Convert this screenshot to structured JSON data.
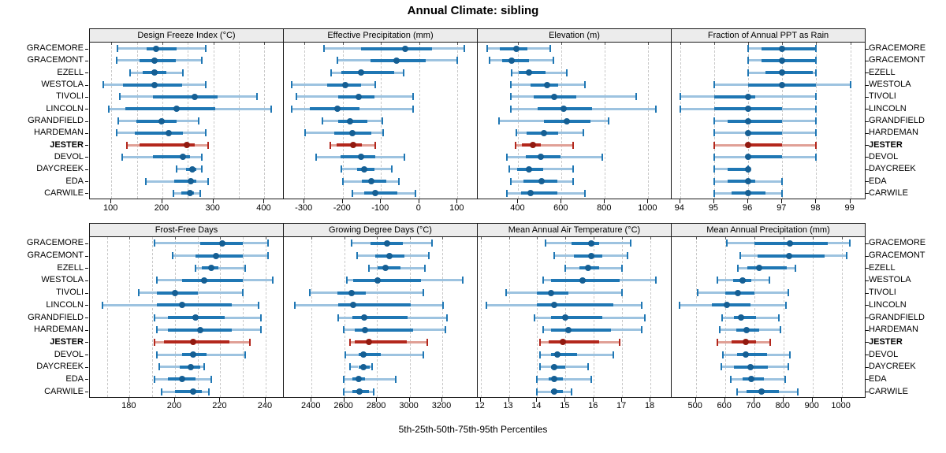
{
  "title": "Annual Climate: sibling",
  "caption": "5th-25th-50th-75th-95th Percentiles",
  "chart_data": {
    "type": "trellis-percentile-dotplot",
    "title": "Annual Climate: sibling",
    "caption": "5th-25th-50th-75th-95th Percentiles",
    "percentile_labels": [
      "5th",
      "25th",
      "50th",
      "75th",
      "95th"
    ],
    "legend_position": "none",
    "grid": "on",
    "stations": [
      "GRACEMORE",
      "GRACEMONT",
      "EZELL",
      "WESTOLA",
      "TIVOLI",
      "LINCOLN",
      "GRANDFIELD",
      "HARDEMAN",
      "JESTER",
      "DEVOL",
      "DAYCREEK",
      "EDA",
      "CARWILE"
    ],
    "highlight_station": "JESTER",
    "colors": {
      "blue_tail": "#9dc3e0",
      "blue_box": "#1f77b4",
      "blue_dot": "#155f94",
      "red_tail": "#e0a096",
      "red_box": "#b3271c",
      "red_dot": "#921a10",
      "grid": "#c9c9c9",
      "header_bg": "#ececec",
      "border": "#1a1a1a"
    },
    "panels": [
      {
        "title": "Design Freeze Index (°C)",
        "band": 0,
        "domain": [
          58,
          438
        ],
        "ticks": [
          100,
          200,
          300,
          400
        ],
        "minor_grid": [
          150,
          250,
          350
        ],
        "series": [
          [
            112,
            169,
            188,
            228,
            285
          ],
          [
            110,
            156,
            185,
            226,
            278
          ],
          [
            137,
            162,
            184,
            208,
            241
          ],
          [
            84,
            123,
            185,
            238,
            285
          ],
          [
            116,
            182,
            263,
            308,
            386
          ],
          [
            95,
            128,
            228,
            304,
            413
          ],
          [
            113,
            149,
            199,
            228,
            271
          ],
          [
            110,
            146,
            212,
            241,
            285
          ],
          [
            131,
            156,
            248,
            264,
            289
          ],
          [
            122,
            182,
            241,
            254,
            278
          ],
          [
            228,
            246,
            259,
            267,
            278
          ],
          [
            167,
            223,
            256,
            267,
            289
          ],
          [
            222,
            237,
            254,
            262,
            275
          ]
        ]
      },
      {
        "title": "Effective Precipitation (mm)",
        "band": 0,
        "domain": [
          -354,
          153
        ],
        "ticks": [
          -300,
          -200,
          -100,
          0,
          100
        ],
        "minor_grid": [],
        "series": [
          [
            -249,
            -153,
            -37,
            34,
            118
          ],
          [
            -214,
            -128,
            -59,
            16,
            99
          ],
          [
            -230,
            -204,
            -151,
            -65,
            -40
          ],
          [
            -334,
            -241,
            -194,
            -153,
            -114
          ],
          [
            -320,
            -211,
            -159,
            -116,
            -15
          ],
          [
            -334,
            -285,
            -214,
            -156,
            -17
          ],
          [
            -253,
            -211,
            -181,
            -135,
            -97
          ],
          [
            -299,
            -223,
            -174,
            -125,
            -94
          ],
          [
            -232,
            -216,
            -172,
            -149,
            -114
          ],
          [
            -269,
            -206,
            -153,
            -114,
            -38
          ],
          [
            -204,
            -163,
            -144,
            -118,
            -72
          ],
          [
            -199,
            -149,
            -125,
            -87,
            -54
          ],
          [
            -174,
            -144,
            -114,
            -58,
            -10
          ]
        ]
      },
      {
        "title": "Elevation (m)",
        "band": 0,
        "domain": [
          213,
          1108
        ],
        "ticks": [
          400,
          600,
          800,
          1000
        ],
        "minor_grid": [],
        "series": [
          [
            257,
            315,
            390,
            442,
            549
          ],
          [
            267,
            325,
            370,
            450,
            561
          ],
          [
            370,
            404,
            450,
            527,
            624
          ],
          [
            364,
            455,
            532,
            583,
            708
          ],
          [
            367,
            471,
            566,
            667,
            945
          ],
          [
            364,
            491,
            610,
            740,
            1034
          ],
          [
            313,
            519,
            624,
            734,
            816
          ],
          [
            392,
            440,
            519,
            583,
            701
          ],
          [
            386,
            418,
            466,
            504,
            652
          ],
          [
            349,
            436,
            504,
            596,
            788
          ],
          [
            358,
            394,
            450,
            515,
            655
          ],
          [
            364,
            424,
            509,
            582,
            655
          ],
          [
            349,
            412,
            455,
            582,
            707
          ]
        ]
      },
      {
        "title": "Fraction of Annual PPT as Rain",
        "band": 0,
        "domain": [
          93.75,
          99.45
        ],
        "ticks": [
          94,
          95,
          96,
          97,
          98,
          99
        ],
        "minor_grid": [],
        "series": [
          [
            96,
            96.4,
            97,
            98,
            98
          ],
          [
            96,
            96.4,
            97,
            98,
            98
          ],
          [
            96,
            96.5,
            97,
            97.9,
            98
          ],
          [
            95,
            96,
            97,
            98,
            99
          ],
          [
            94,
            95,
            96,
            96.2,
            98
          ],
          [
            94,
            95,
            96,
            97,
            98
          ],
          [
            95,
            95.4,
            96,
            97,
            98
          ],
          [
            95,
            96,
            96,
            97,
            98
          ],
          [
            95,
            96,
            96,
            97,
            98
          ],
          [
            95,
            96,
            96,
            97,
            98
          ],
          [
            95,
            95.4,
            96,
            96,
            96
          ],
          [
            95,
            95.4,
            96,
            96.2,
            97
          ],
          [
            95,
            95.5,
            96,
            96.5,
            97
          ]
        ]
      },
      {
        "title": "Frost-Free Days",
        "band": 1,
        "domain": [
          162.5,
          248
        ],
        "ticks": [
          180,
          200,
          220,
          240
        ],
        "minor_grid": [
          170,
          190,
          210,
          230
        ],
        "series": [
          [
            191,
            211,
            221,
            230,
            241
          ],
          [
            199,
            209,
            218,
            230,
            241
          ],
          [
            209,
            212,
            216,
            219,
            231
          ],
          [
            192,
            203,
            213,
            230,
            243
          ],
          [
            184,
            192,
            200,
            210,
            230
          ],
          [
            168,
            192,
            203,
            225,
            237
          ],
          [
            191,
            197,
            209,
            222,
            238
          ],
          [
            192,
            197,
            211,
            225,
            238
          ],
          [
            191,
            195,
            208,
            224,
            233
          ],
          [
            192,
            203,
            208,
            214,
            231
          ],
          [
            193,
            202,
            207,
            211,
            213
          ],
          [
            191,
            197,
            203,
            209,
            216
          ],
          [
            194,
            200,
            208,
            212,
            215
          ]
        ]
      },
      {
        "title": "Growing Degree Days (°C)",
        "band": 1,
        "domain": [
          2230,
          3417
        ],
        "ticks": [
          2400,
          2600,
          2800,
          3000,
          3200
        ],
        "minor_grid": [],
        "series": [
          [
            2646,
            2761,
            2862,
            2958,
            3139
          ],
          [
            2678,
            2790,
            2875,
            2966,
            3118
          ],
          [
            2750,
            2806,
            2854,
            2944,
            3094
          ],
          [
            2614,
            2654,
            2803,
            3070,
            3326
          ],
          [
            2390,
            2558,
            2646,
            2731,
            3083
          ],
          [
            2299,
            2563,
            2654,
            3006,
            3203
          ],
          [
            2563,
            2651,
            2723,
            2987,
            3230
          ],
          [
            2598,
            2662,
            2726,
            3022,
            3219
          ],
          [
            2635,
            2662,
            2750,
            2982,
            3107
          ],
          [
            2606,
            2686,
            2715,
            2822,
            3083
          ],
          [
            2635,
            2686,
            2718,
            2755,
            2771
          ],
          [
            2598,
            2651,
            2686,
            2726,
            2915
          ],
          [
            2595,
            2651,
            2694,
            2750,
            2782
          ]
        ]
      },
      {
        "title": "Mean Annual Air Temperature (°C)",
        "band": 1,
        "domain": [
          11.9,
          18.75
        ],
        "ticks": [
          12,
          13,
          14,
          15,
          16,
          17,
          18
        ],
        "minor_grid": [],
        "series": [
          [
            14.3,
            15.2,
            15.9,
            16.2,
            17.3
          ],
          [
            14.6,
            15.3,
            15.9,
            16.3,
            17.2
          ],
          [
            15.0,
            15.5,
            15.8,
            16.2,
            17.0
          ],
          [
            14.2,
            14.5,
            15.6,
            16.9,
            18.2
          ],
          [
            12.9,
            14.0,
            14.5,
            15.1,
            17.0
          ],
          [
            12.2,
            14.0,
            14.6,
            16.7,
            17.7
          ],
          [
            13.9,
            14.5,
            15.0,
            16.3,
            17.8
          ],
          [
            14.2,
            14.5,
            15.1,
            16.6,
            17.7
          ],
          [
            14.1,
            14.4,
            14.9,
            16.2,
            16.9
          ],
          [
            14.1,
            14.5,
            14.7,
            15.4,
            16.7
          ],
          [
            14.1,
            14.5,
            14.6,
            15.0,
            15.8
          ],
          [
            14.0,
            14.4,
            14.6,
            14.9,
            15.9
          ],
          [
            14.0,
            14.5,
            14.6,
            14.9,
            15.2
          ]
        ]
      },
      {
        "title": "Mean Annual Precipitation (mm)",
        "band": 1,
        "domain": [
          417,
          1082
        ],
        "ticks": [
          500,
          600,
          700,
          800,
          900,
          1000
        ],
        "minor_grid": [],
        "series": [
          [
            605,
            700,
            822,
            953,
            1027
          ],
          [
            653,
            712,
            820,
            941,
            1016
          ],
          [
            644,
            677,
            718,
            811,
            841
          ],
          [
            575,
            627,
            659,
            691,
            753
          ],
          [
            505,
            600,
            644,
            700,
            818
          ],
          [
            444,
            554,
            607,
            686,
            809
          ],
          [
            589,
            630,
            655,
            705,
            785
          ],
          [
            582,
            639,
            675,
            718,
            791
          ],
          [
            575,
            623,
            671,
            705,
            755
          ],
          [
            594,
            641,
            671,
            744,
            823
          ],
          [
            586,
            630,
            686,
            748,
            818
          ],
          [
            621,
            659,
            691,
            732,
            807
          ],
          [
            641,
            673,
            725,
            785,
            850
          ]
        ]
      }
    ]
  }
}
